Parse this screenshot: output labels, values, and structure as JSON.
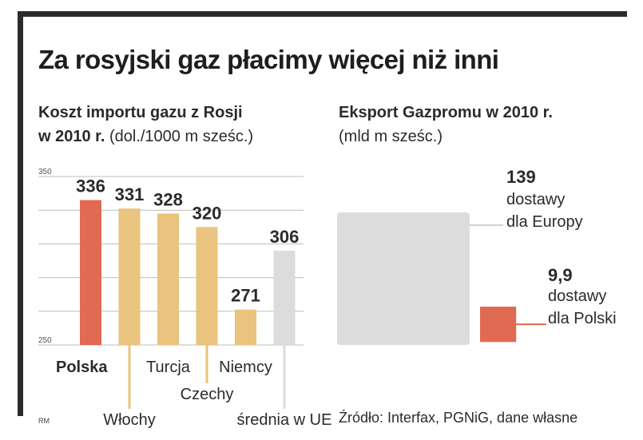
{
  "title": "Za rosyjski gaz płacimy więcej niż inni",
  "chart_data": [
    {
      "type": "bar",
      "title_line1": "Koszt importu gazu z Rosji",
      "title_line2": "w 2010 r.",
      "unit": "(dol./1000 m sześc.)",
      "ylim": [
        250,
        350
      ],
      "yticks": [
        "350",
        "250"
      ],
      "categories": [
        "Polska",
        "Włochy",
        "Turcja",
        "Czechy",
        "Niemcy",
        "średnia w UE"
      ],
      "values": [
        336,
        331,
        328,
        320,
        271,
        306
      ],
      "value_labels": [
        "336",
        "331",
        "328",
        "320",
        "271",
        "306"
      ],
      "colors": [
        "#e06a52",
        "#e8c47e",
        "#e8c47e",
        "#e8c47e",
        "#e8c47e",
        "#dcdcdc"
      ],
      "highlight": "Polska",
      "grid": true
    },
    {
      "type": "area",
      "title": "Eksport Gazpromu w 2010 r.",
      "unit": "(mld m sześc.)",
      "items": [
        {
          "value": 139,
          "value_label": "139",
          "label_line1": "dostawy",
          "label_line2": "dla Europy",
          "color": "#dcdcdc"
        },
        {
          "value": 9.9,
          "value_label": "9,9",
          "label_line1": "dostawy",
          "label_line2": "dla Polski",
          "color": "#e06a52"
        }
      ]
    }
  ],
  "credit": "RM",
  "source": "Źródło: Interfax, PGNiG, dane własne"
}
